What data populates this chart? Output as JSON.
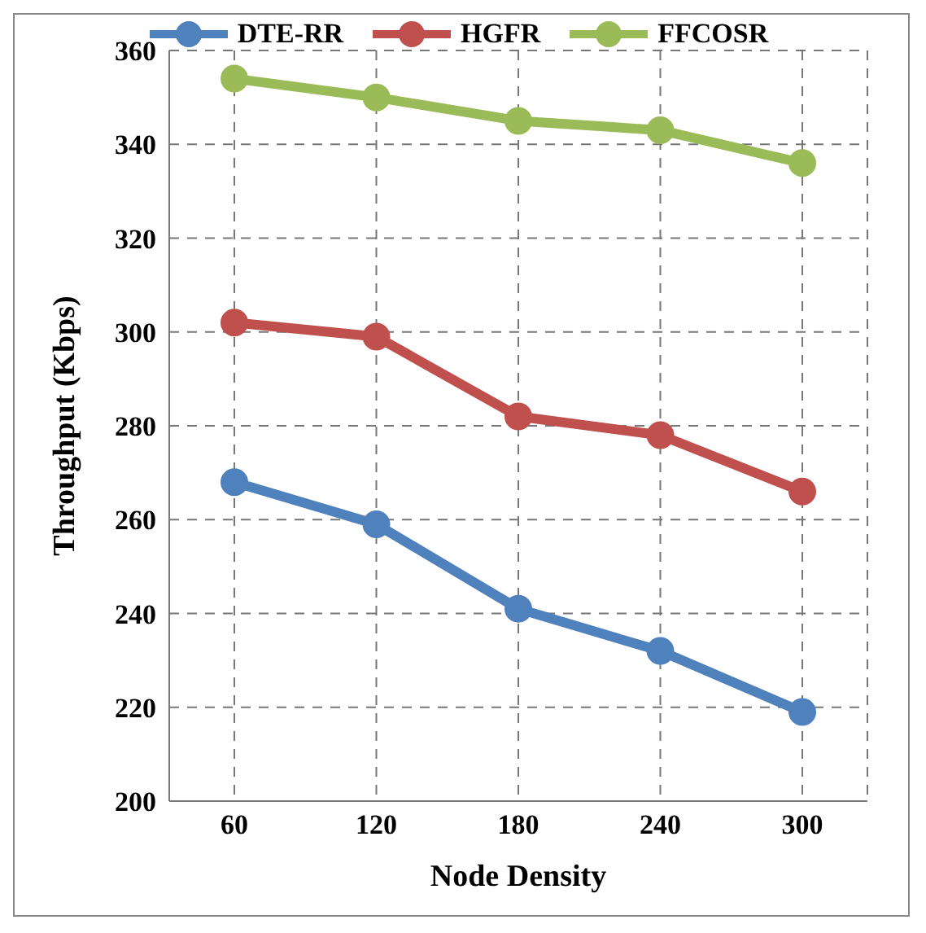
{
  "chart_data": {
    "type": "line",
    "xlabel": "Node Density",
    "ylabel": "Throughput (Kbps)",
    "x": [
      60,
      120,
      180,
      240,
      300
    ],
    "series": [
      {
        "name": "DTE-RR",
        "color": "#4f81bd",
        "values": [
          268,
          259,
          241,
          232,
          219
        ]
      },
      {
        "name": "HGFR",
        "color": "#c0504d",
        "values": [
          302,
          299,
          282,
          278,
          266
        ]
      },
      {
        "name": "FFCOSR",
        "color": "#9bbb59",
        "values": [
          354,
          350,
          345,
          343,
          336
        ]
      }
    ],
    "xlim": [
      60,
      300
    ],
    "xticks": [
      60,
      120,
      180,
      240,
      300
    ],
    "ylim": [
      200,
      360
    ],
    "yticks": [
      200,
      220,
      240,
      260,
      280,
      300,
      320,
      340,
      360
    ],
    "grid": true,
    "legend": "top",
    "marker": "circle",
    "line_style": "solid"
  }
}
